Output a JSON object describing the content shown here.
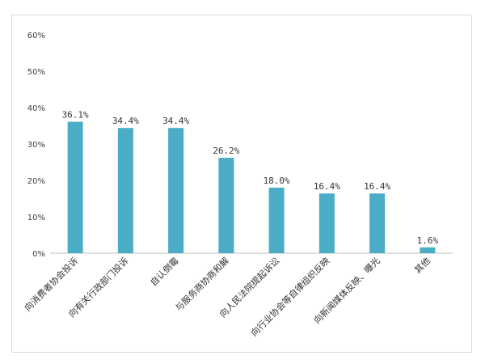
{
  "chart_data": {
    "type": "bar",
    "categories": [
      "向消费者协会投诉",
      "向有关行政部门投诉",
      "自认倒霉",
      "与服务商协商和解",
      "向人民法院提起诉讼",
      "向行业协会等自律组织反映",
      "向新闻媒体反映、曝光",
      "其他"
    ],
    "values": [
      36.1,
      34.4,
      34.4,
      26.2,
      18.0,
      16.4,
      16.4,
      1.6
    ],
    "value_labels": [
      "36.1%",
      "34.4%",
      "34.4%",
      "26.2%",
      "18.0%",
      "16.4%",
      "16.4%",
      "1.6%"
    ],
    "y_ticks": [
      "0%",
      "10%",
      "20%",
      "30%",
      "40%",
      "50%",
      "60%"
    ],
    "ylim": [
      0,
      60
    ],
    "grid": false,
    "legend": "none",
    "bar_color": "#4bacc6"
  }
}
